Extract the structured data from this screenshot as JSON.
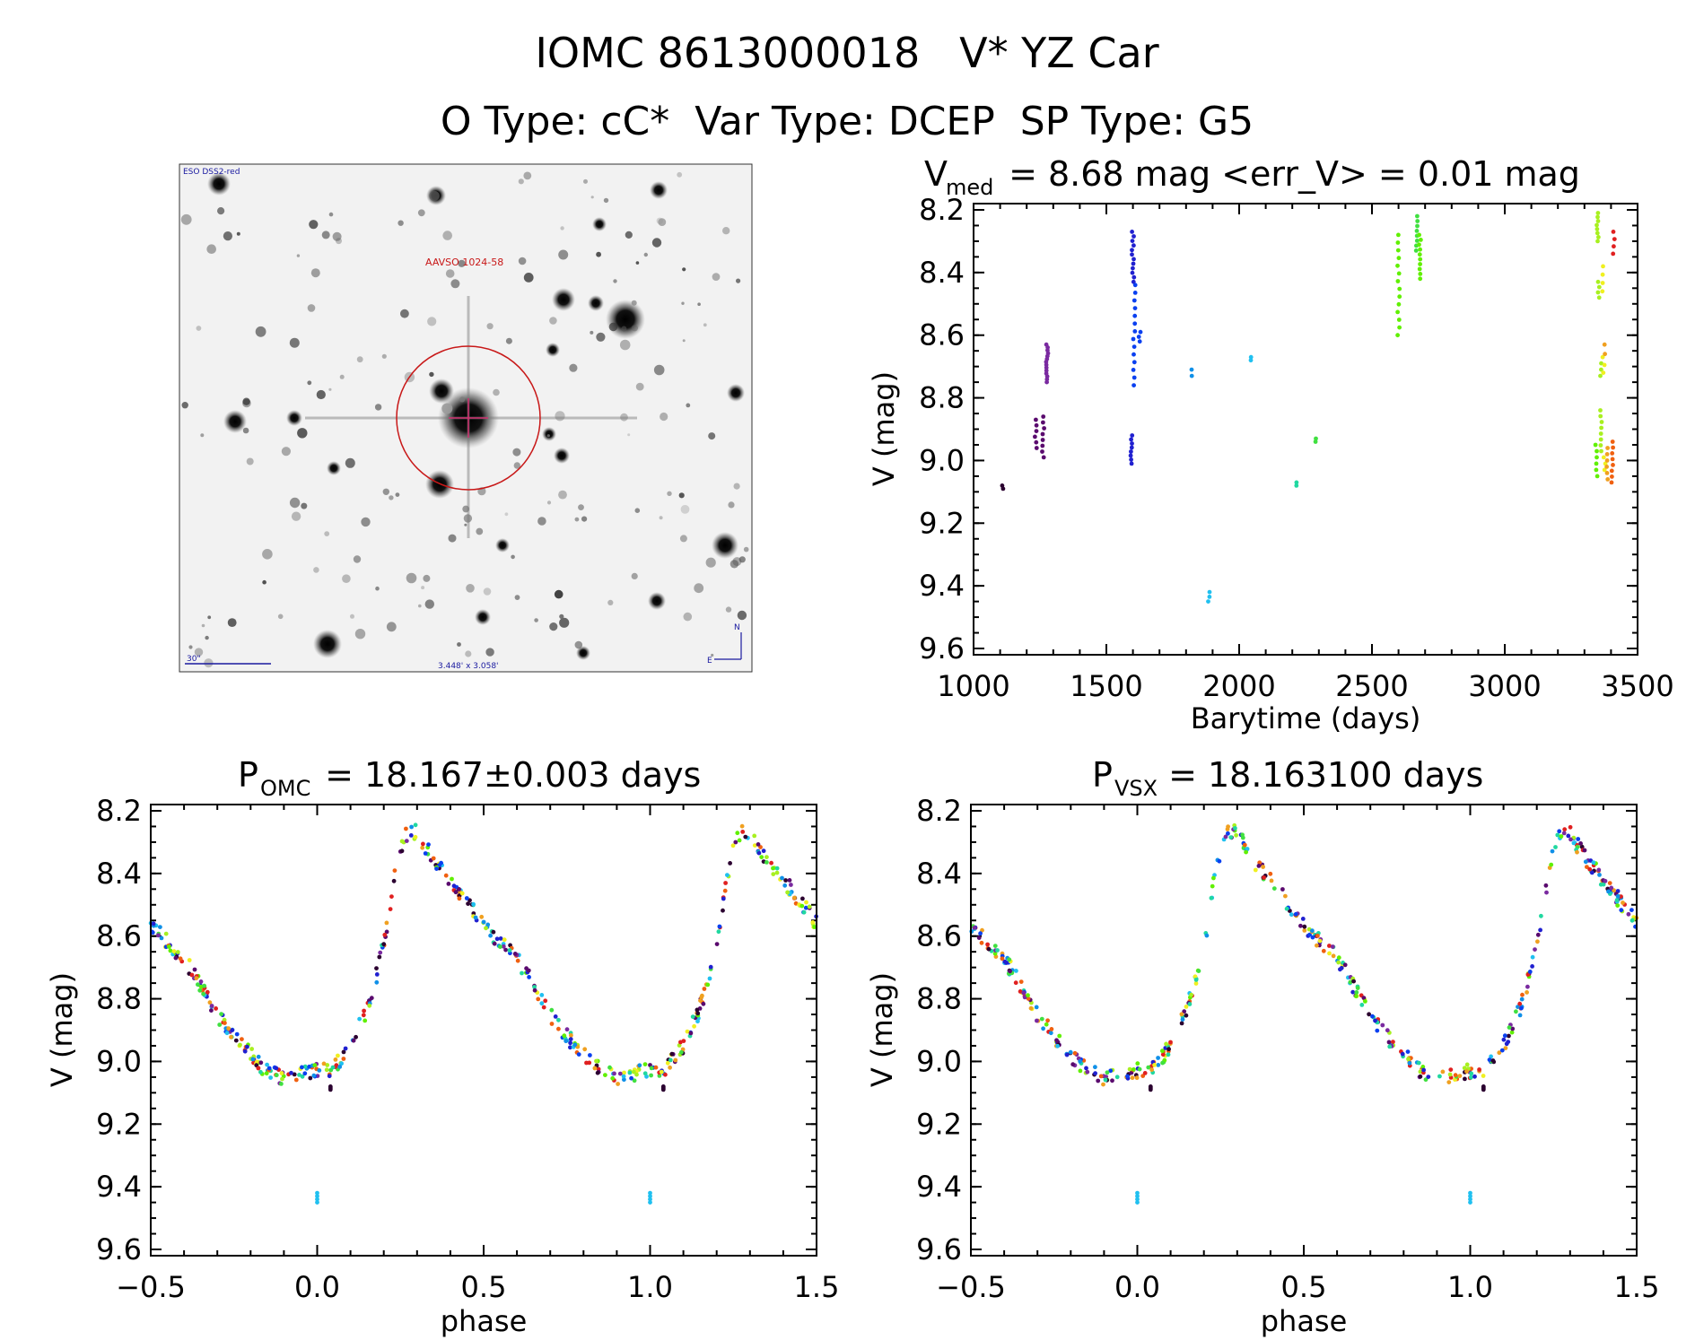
{
  "header": {
    "line1": "IOMC 8613000018   V* YZ Car",
    "line2": "O Type: cC*  Var Type: DCEP  SP Type: G5"
  },
  "finder": {
    "survey_label": "ESO DSS2-red",
    "target_label": "AAVSO 1024-58",
    "scale_label": "30\"",
    "fov_label": "3.448' x 3.058'",
    "north_label": "N",
    "east_label": "E"
  },
  "colors": {
    "sequence": [
      "#2b0030",
      "#5a0a6e",
      "#7a2aa0",
      "#2020d0",
      "#0a40f0",
      "#1090e8",
      "#20c0f0",
      "#20d8a0",
      "#40e040",
      "#60f000",
      "#a8f020",
      "#f0f020",
      "#f0a020",
      "#f06010",
      "#e02020"
    ]
  },
  "chart_data": [
    {
      "id": "lightcurve",
      "type": "scatter",
      "title_main": "V",
      "title_sub": "med",
      "title_rest": " = 8.68 mag <err_V> = 0.01 mag",
      "xlabel": "Barytime (days)",
      "ylabel": "V (mag)",
      "xlim": [
        1000,
        3500
      ],
      "ylim": [
        9.62,
        8.18
      ],
      "xticks": [
        "1000",
        "1500",
        "2000",
        "2500",
        "3000",
        "3500"
      ],
      "yticks": [
        "8.2",
        "8.4",
        "8.6",
        "8.8",
        "9.0",
        "9.2",
        "9.4",
        "9.6"
      ],
      "clusters": [
        {
          "x": 1110,
          "y0": 9.08,
          "y1": 9.09,
          "n": 2,
          "c": 0
        },
        {
          "x": 1235,
          "y0": 8.87,
          "y1": 8.96,
          "n": 6,
          "c": 1
        },
        {
          "x": 1262,
          "y0": 8.86,
          "y1": 8.99,
          "n": 8,
          "c": 1
        },
        {
          "x": 1277,
          "y0": 8.63,
          "y1": 8.75,
          "n": 14,
          "c": 2
        },
        {
          "x": 1595,
          "y0": 8.92,
          "y1": 9.01,
          "n": 8,
          "c": 3
        },
        {
          "x": 1600,
          "y0": 8.27,
          "y1": 8.43,
          "n": 12,
          "c": 3
        },
        {
          "x": 1605,
          "y0": 8.44,
          "y1": 8.76,
          "n": 14,
          "c": 4
        },
        {
          "x": 1625,
          "y0": 8.59,
          "y1": 8.62,
          "n": 3,
          "c": 4
        },
        {
          "x": 1820,
          "y0": 8.71,
          "y1": 8.73,
          "n": 2,
          "c": 5
        },
        {
          "x": 1885,
          "y0": 9.42,
          "y1": 9.45,
          "n": 3,
          "c": 6
        },
        {
          "x": 2045,
          "y0": 8.67,
          "y1": 8.68,
          "n": 2,
          "c": 6
        },
        {
          "x": 2215,
          "y0": 9.07,
          "y1": 9.08,
          "n": 2,
          "c": 7
        },
        {
          "x": 2285,
          "y0": 8.93,
          "y1": 8.94,
          "n": 2,
          "c": 8
        },
        {
          "x": 2600,
          "y0": 8.28,
          "y1": 8.6,
          "n": 14,
          "c": 9
        },
        {
          "x": 2670,
          "y0": 8.22,
          "y1": 8.33,
          "n": 8,
          "c": 8
        },
        {
          "x": 2680,
          "y0": 8.28,
          "y1": 8.42,
          "n": 10,
          "c": 9
        },
        {
          "x": 3345,
          "y0": 8.95,
          "y1": 9.05,
          "n": 6,
          "c": 9
        },
        {
          "x": 3350,
          "y0": 8.21,
          "y1": 8.3,
          "n": 8,
          "c": 10
        },
        {
          "x": 3355,
          "y0": 8.43,
          "y1": 8.48,
          "n": 4,
          "c": 10
        },
        {
          "x": 3360,
          "y0": 8.69,
          "y1": 8.73,
          "n": 3,
          "c": 10
        },
        {
          "x": 3362,
          "y0": 8.84,
          "y1": 8.97,
          "n": 8,
          "c": 10
        },
        {
          "x": 3368,
          "y0": 8.38,
          "y1": 8.46,
          "n": 4,
          "c": 11
        },
        {
          "x": 3372,
          "y0": 8.67,
          "y1": 8.72,
          "n": 3,
          "c": 11
        },
        {
          "x": 3375,
          "y0": 8.99,
          "y1": 9.03,
          "n": 3,
          "c": 11
        },
        {
          "x": 3378,
          "y0": 8.63,
          "y1": 8.66,
          "n": 2,
          "c": 12
        },
        {
          "x": 3385,
          "y0": 8.96,
          "y1": 9.06,
          "n": 6,
          "c": 12
        },
        {
          "x": 3405,
          "y0": 8.94,
          "y1": 9.07,
          "n": 8,
          "c": 13
        },
        {
          "x": 3410,
          "y0": 8.27,
          "y1": 8.34,
          "n": 4,
          "c": 14
        }
      ]
    },
    {
      "id": "phase_omc",
      "type": "scatter",
      "title_main": "P",
      "title_sub": "OMC",
      "title_rest": " = 18.167±0.003 days",
      "xlabel": "phase",
      "ylabel": "V (mag)",
      "xlim": [
        -0.5,
        1.5
      ],
      "ylim": [
        9.62,
        8.18
      ],
      "xticks": [
        "−0.5",
        "0.0",
        "0.5",
        "1.0",
        "1.5"
      ],
      "yticks": [
        "8.2",
        "8.4",
        "8.6",
        "8.8",
        "9.0",
        "9.2",
        "9.4",
        "9.6"
      ],
      "curve": [
        [
          0.0,
          9.03
        ],
        [
          0.05,
          9.02
        ],
        [
          0.1,
          8.95
        ],
        [
          0.15,
          8.83
        ],
        [
          0.18,
          8.72
        ],
        [
          0.21,
          8.57
        ],
        [
          0.24,
          8.36
        ],
        [
          0.27,
          8.27
        ],
        [
          0.3,
          8.27
        ],
        [
          0.35,
          8.36
        ],
        [
          0.4,
          8.42
        ],
        [
          0.45,
          8.49
        ],
        [
          0.5,
          8.56
        ],
        [
          0.55,
          8.62
        ],
        [
          0.6,
          8.67
        ],
        [
          0.65,
          8.76
        ],
        [
          0.7,
          8.85
        ],
        [
          0.75,
          8.92
        ],
        [
          0.8,
          8.98
        ],
        [
          0.85,
          9.03
        ],
        [
          0.9,
          9.05
        ],
        [
          0.95,
          9.04
        ],
        [
          1.0,
          9.03
        ]
      ],
      "outliers": [
        {
          "x": 0.0,
          "y0": 9.42,
          "y1": 9.45,
          "c": 6
        },
        {
          "x": 0.04,
          "y0": 9.08,
          "y1": 9.09,
          "c": 0
        }
      ]
    },
    {
      "id": "phase_vsx",
      "type": "scatter",
      "title_main": "P",
      "title_sub": "VSX",
      "title_rest": " = 18.163100 days",
      "xlabel": "phase",
      "ylabel": "V (mag)",
      "xlim": [
        -0.5,
        1.5
      ],
      "ylim": [
        9.62,
        8.18
      ],
      "xticks": [
        "−0.5",
        "0.0",
        "0.5",
        "1.0",
        "1.5"
      ],
      "yticks": [
        "8.2",
        "8.4",
        "8.6",
        "8.8",
        "9.0",
        "9.2",
        "9.4",
        "9.6"
      ],
      "curve": [
        [
          0.0,
          9.03
        ],
        [
          0.05,
          9.02
        ],
        [
          0.1,
          8.95
        ],
        [
          0.15,
          8.83
        ],
        [
          0.18,
          8.72
        ],
        [
          0.21,
          8.57
        ],
        [
          0.24,
          8.36
        ],
        [
          0.27,
          8.27
        ],
        [
          0.3,
          8.27
        ],
        [
          0.35,
          8.36
        ],
        [
          0.4,
          8.42
        ],
        [
          0.45,
          8.49
        ],
        [
          0.5,
          8.56
        ],
        [
          0.55,
          8.62
        ],
        [
          0.6,
          8.67
        ],
        [
          0.65,
          8.76
        ],
        [
          0.7,
          8.85
        ],
        [
          0.75,
          8.92
        ],
        [
          0.8,
          8.98
        ],
        [
          0.85,
          9.03
        ],
        [
          0.9,
          9.05
        ],
        [
          0.95,
          9.04
        ],
        [
          1.0,
          9.03
        ]
      ],
      "outliers": [
        {
          "x": 0.0,
          "y0": 9.42,
          "y1": 9.45,
          "c": 6
        },
        {
          "x": 0.04,
          "y0": 9.08,
          "y1": 9.09,
          "c": 0
        }
      ]
    }
  ]
}
